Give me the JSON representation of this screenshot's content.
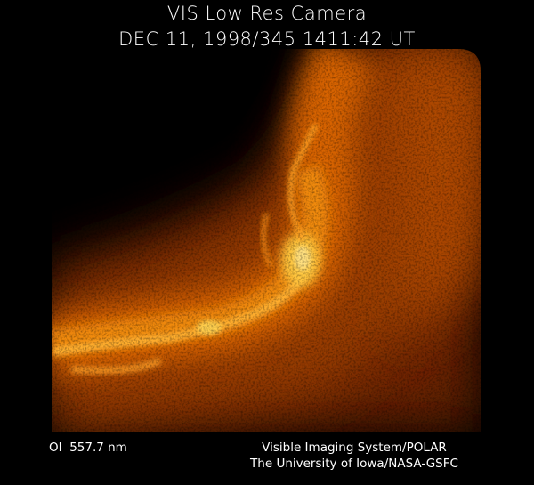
{
  "header": {
    "title": "VIS Low Res Camera",
    "subtitle": "DEC 11, 1998/345 1411:42 UT"
  },
  "footer": {
    "filter": "OI  557.7 nm",
    "credits": [
      "Visible Imaging System/POLAR",
      "The University of Iowa/NASA-GSFC"
    ]
  }
}
